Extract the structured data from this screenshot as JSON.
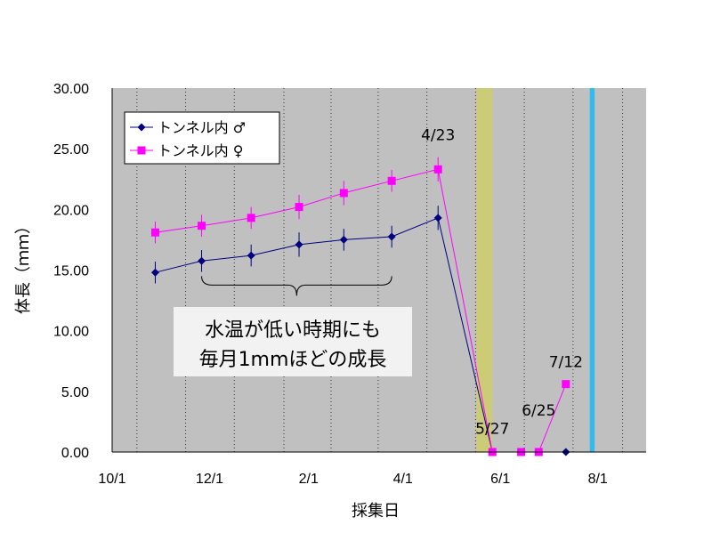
{
  "chart_data": {
    "type": "line",
    "xlabel": "採集日",
    "ylabel": "体長（ｍｍ）",
    "x_tick_labels": [
      "10/1",
      "12/1",
      "2/1",
      "4/1",
      "6/1",
      "8/1"
    ],
    "y_tick_labels": [
      "0.00",
      "5.00",
      "10.00",
      "15.00",
      "20.00",
      "25.00",
      "30.00"
    ],
    "xlim": [
      "10/1",
      "9/15"
    ],
    "ylim": [
      0,
      30
    ],
    "grid": "vertical dotted lines, monthly",
    "background": "#c0c0c0",
    "legend_position": "top-left",
    "series": [
      {
        "name": "トンネル内 ♂",
        "color": "#000080",
        "marker": "diamond",
        "points": [
          {
            "x": "10/28",
            "y": 14.8,
            "err": 0.9
          },
          {
            "x": "11/26",
            "y": 15.75,
            "err": 0.9
          },
          {
            "x": "12/27",
            "y": 16.2,
            "err": 0.9
          },
          {
            "x": "1/26",
            "y": 17.1,
            "err": 1.0
          },
          {
            "x": "2/23",
            "y": 17.5,
            "err": 0.9
          },
          {
            "x": "3/25",
            "y": 17.75,
            "err": 0.9
          },
          {
            "x": "4/23",
            "y": 19.3,
            "err": 1.0
          },
          {
            "x": "5/27",
            "y": 0.0,
            "err": 0
          },
          {
            "x": "6/14",
            "y": 0.0,
            "err": 0
          },
          {
            "x": "6/25",
            "y": 0.0,
            "err": 0
          },
          {
            "x": "7/12",
            "y": 0.0,
            "err": 0
          }
        ]
      },
      {
        "name": "トンネル内 ♀",
        "color": "#ff00ff",
        "marker": "square",
        "points": [
          {
            "x": "10/28",
            "y": 18.1,
            "err": 0.9
          },
          {
            "x": "11/26",
            "y": 18.65,
            "err": 0.9
          },
          {
            "x": "12/27",
            "y": 19.3,
            "err": 0.9
          },
          {
            "x": "1/26",
            "y": 20.2,
            "err": 1.0
          },
          {
            "x": "2/23",
            "y": 21.35,
            "err": 1.0
          },
          {
            "x": "3/25",
            "y": 22.35,
            "err": 0.9
          },
          {
            "x": "4/23",
            "y": 23.3,
            "err": 1.0
          },
          {
            "x": "5/27",
            "y": 0.0,
            "err": 0
          },
          {
            "x": "6/14",
            "y": 0.0,
            "err": 0
          },
          {
            "x": "6/25",
            "y": 0.0,
            "err": 0
          },
          {
            "x": "7/12",
            "y": 5.6,
            "err": 0
          }
        ]
      }
    ],
    "annotations": [
      {
        "text": "4/23",
        "x": "4/23",
        "y": 25.7
      },
      {
        "text": "5/27",
        "x": "5/27",
        "y": 1.5
      },
      {
        "text": "6/25",
        "x": "6/25",
        "y": 3.0
      },
      {
        "text": "7/12",
        "x": "7/12",
        "y": 7.0
      }
    ],
    "bands": [
      {
        "from": "5/17",
        "to": "5/27",
        "color": "#cccc77"
      },
      {
        "from": "7/27",
        "to": "7/30",
        "color": "#33bbee"
      }
    ],
    "brace": {
      "from": "11/26",
      "to": "3/25",
      "y": 14.5
    },
    "note": [
      "水温が低い時期にも",
      "毎月1mmほどの成長"
    ]
  }
}
